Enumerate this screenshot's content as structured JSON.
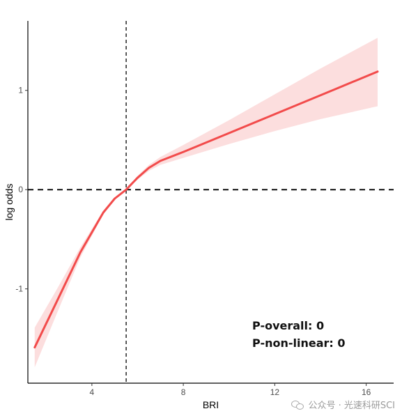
{
  "chart_data": {
    "type": "line",
    "xlabel": "BRI",
    "ylabel": "log odds",
    "xlim": [
      1.2,
      17.2
    ],
    "ylim": [
      -1.95,
      1.7
    ],
    "x_ticks": [
      4,
      8,
      12,
      16
    ],
    "y_ticks": [
      -1,
      0,
      1
    ],
    "grid": false,
    "reference_lines": {
      "x": 5.5,
      "y": 0,
      "style": "dashed"
    },
    "series": [
      {
        "color": "#f24b4b",
        "band_color": "#fcdede",
        "x": [
          1.5,
          2.5,
          3.5,
          4.5,
          5.0,
          5.5,
          6.0,
          6.5,
          7.0,
          8.0,
          10.0,
          12.0,
          14.0,
          16.5
        ],
        "y": [
          -1.59,
          -1.11,
          -0.63,
          -0.23,
          -0.09,
          0.0,
          0.12,
          0.22,
          0.29,
          0.38,
          0.57,
          0.76,
          0.95,
          1.19
        ],
        "lower": [
          -1.79,
          -1.23,
          -0.68,
          -0.25,
          -0.1,
          0.0,
          0.1,
          0.19,
          0.25,
          0.32,
          0.46,
          0.59,
          0.71,
          0.84
        ],
        "upper": [
          -1.39,
          -0.99,
          -0.58,
          -0.21,
          -0.08,
          0.0,
          0.14,
          0.25,
          0.33,
          0.45,
          0.7,
          0.96,
          1.22,
          1.53
        ]
      }
    ],
    "annotations": [
      "P-overall: 0",
      "P-non-linear: 0"
    ]
  },
  "watermark": "公众号 · 光速科研SCI",
  "watermark_icon": "wechat-icon"
}
